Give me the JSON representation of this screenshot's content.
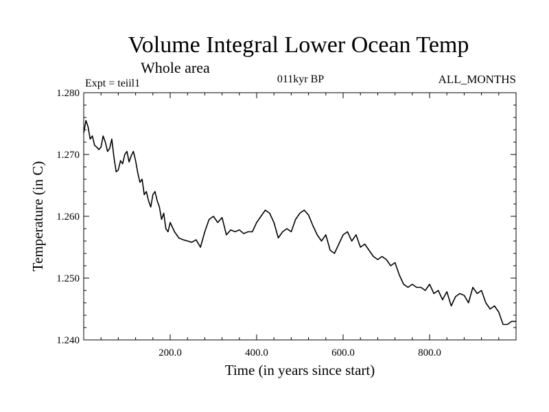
{
  "chart_data": {
    "type": "line",
    "title": "Volume Integral Lower Ocean Temp",
    "subtitle": "Whole area",
    "annotations": {
      "experiment": "Expt = teiil1",
      "period": "011kyr BP",
      "months": "ALL_MONTHS"
    },
    "xlabel": "Time (in years since start)",
    "ylabel": "Temperature (in C)",
    "xlim": [
      0,
      1000
    ],
    "ylim": [
      1.24,
      1.28
    ],
    "x_ticks": [
      200,
      400,
      600,
      800
    ],
    "x_tick_labels": [
      "200.0",
      "400.0",
      "600.0",
      "800.0"
    ],
    "y_ticks": [
      1.24,
      1.25,
      1.26,
      1.27,
      1.28
    ],
    "y_tick_labels": [
      "1.240",
      "1.250",
      "1.260",
      "1.270",
      "1.280"
    ],
    "grid": false,
    "series": [
      {
        "color": "#000000",
        "x": [
          0,
          5,
          10,
          15,
          20,
          25,
          30,
          35,
          40,
          45,
          50,
          55,
          60,
          65,
          70,
          75,
          80,
          85,
          90,
          95,
          100,
          105,
          110,
          115,
          120,
          125,
          130,
          135,
          140,
          145,
          150,
          155,
          160,
          165,
          170,
          175,
          180,
          185,
          190,
          195,
          200,
          210,
          220,
          230,
          240,
          250,
          260,
          270,
          280,
          290,
          300,
          310,
          320,
          330,
          340,
          350,
          360,
          370,
          380,
          390,
          400,
          410,
          420,
          430,
          440,
          450,
          460,
          470,
          480,
          490,
          500,
          510,
          520,
          530,
          540,
          550,
          560,
          570,
          580,
          590,
          600,
          610,
          620,
          630,
          640,
          650,
          660,
          670,
          680,
          690,
          700,
          710,
          720,
          730,
          740,
          750,
          760,
          770,
          780,
          790,
          800,
          810,
          820,
          830,
          840,
          850,
          860,
          870,
          880,
          890,
          900,
          910,
          920,
          930,
          940,
          950,
          960,
          970,
          980,
          990,
          1000
        ],
        "values": [
          1.2735,
          1.2755,
          1.2745,
          1.2725,
          1.273,
          1.2715,
          1.2712,
          1.2708,
          1.2712,
          1.273,
          1.272,
          1.2705,
          1.271,
          1.2725,
          1.2695,
          1.2672,
          1.2675,
          1.269,
          1.2685,
          1.27,
          1.2705,
          1.2688,
          1.2698,
          1.2705,
          1.269,
          1.267,
          1.2655,
          1.266,
          1.2635,
          1.264,
          1.2625,
          1.2615,
          1.2635,
          1.264,
          1.2625,
          1.2615,
          1.2595,
          1.2605,
          1.258,
          1.2575,
          1.259,
          1.2575,
          1.2565,
          1.2562,
          1.256,
          1.2558,
          1.2562,
          1.255,
          1.2575,
          1.2595,
          1.26,
          1.259,
          1.2598,
          1.257,
          1.2578,
          1.2575,
          1.2578,
          1.2572,
          1.2575,
          1.2575,
          1.259,
          1.26,
          1.261,
          1.2605,
          1.259,
          1.2565,
          1.2575,
          1.258,
          1.2575,
          1.2595,
          1.2605,
          1.261,
          1.2602,
          1.2585,
          1.257,
          1.256,
          1.257,
          1.2545,
          1.254,
          1.2555,
          1.257,
          1.2575,
          1.256,
          1.257,
          1.255,
          1.2555,
          1.2545,
          1.2535,
          1.253,
          1.2535,
          1.253,
          1.252,
          1.2525,
          1.2505,
          1.249,
          1.2485,
          1.249,
          1.2485,
          1.2485,
          1.248,
          1.249,
          1.2475,
          1.248,
          1.2465,
          1.2478,
          1.2455,
          1.247,
          1.2475,
          1.2472,
          1.246,
          1.2485,
          1.2475,
          1.248,
          1.246,
          1.245,
          1.2455,
          1.2445,
          1.2425,
          1.2425,
          1.243,
          1.243
        ]
      }
    ]
  }
}
